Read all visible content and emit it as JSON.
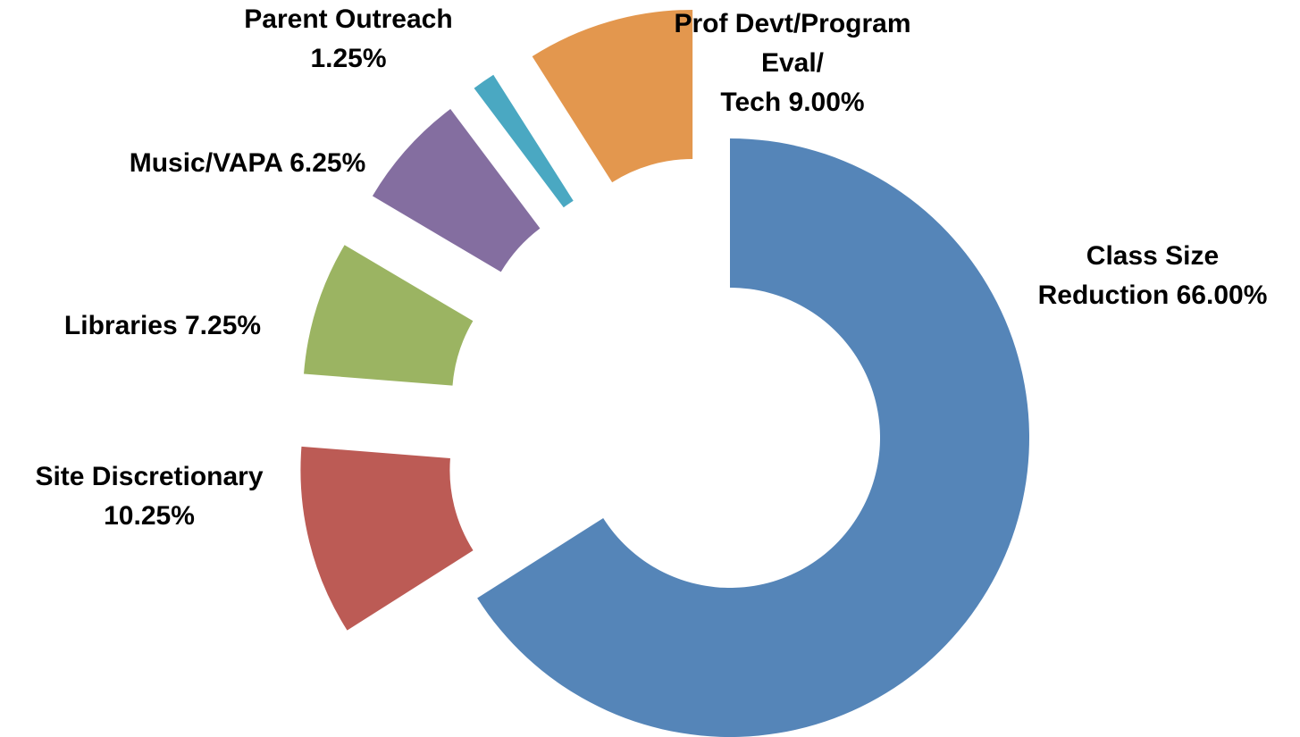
{
  "chart_data": {
    "type": "donut",
    "categories": [
      "Class Size Reduction",
      "Site Discretionary",
      "Libraries",
      "Music/VAPA",
      "Parent Outreach",
      "Prof Devt/Program\nEval/\nTech"
    ],
    "values": [
      66.0,
      10.25,
      7.25,
      6.25,
      1.25,
      9.0
    ],
    "value_labels": [
      "66.00%",
      "10.25%",
      "7.25%",
      "6.25%",
      "1.25%",
      "9.00%"
    ],
    "colors": [
      "#5585b8",
      "#bc5b55",
      "#9bb462",
      "#846ea0",
      "#4aa8c2",
      "#e3974e"
    ]
  }
}
